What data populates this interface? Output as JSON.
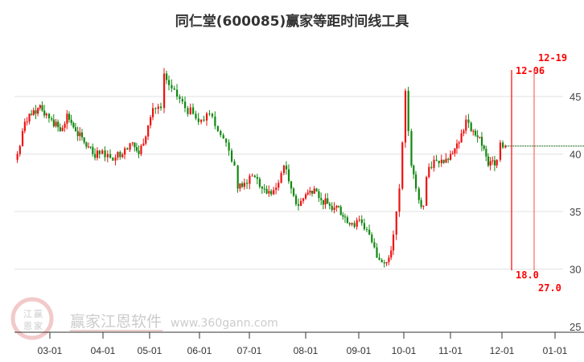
{
  "chart_data": {
    "type": "candlestick",
    "title": "同仁堂(600085)赢家等距时间线工具",
    "x_tick_labels": [
      "03-01",
      "04-01",
      "05-01",
      "06-01",
      "07-01",
      "08-01",
      "09-01",
      "10-01",
      "11-01",
      "12-01",
      "01-01"
    ],
    "y_tick_labels": [
      "45",
      "40",
      "35",
      "30",
      "25"
    ],
    "y_ticks": [
      45,
      40,
      35,
      30,
      25
    ],
    "ylim": [
      25,
      47.5
    ],
    "grid": true,
    "up_color": "#ee1111",
    "down_color": "#118811",
    "closes": [
      [
        "02-10",
        40
      ],
      [
        "02-13",
        42
      ],
      [
        "02-17",
        43.5
      ],
      [
        "02-22",
        44
      ],
      [
        "02-27",
        43.5
      ],
      [
        "03-02",
        43
      ],
      [
        "03-07",
        42
      ],
      [
        "03-11",
        43.5
      ],
      [
        "03-16",
        42
      ],
      [
        "03-21",
        41
      ],
      [
        "03-26",
        40
      ],
      [
        "03-30",
        40
      ],
      [
        "04-04",
        40
      ],
      [
        "04-09",
        39.7
      ],
      [
        "04-15",
        40.5
      ],
      [
        "04-20",
        41
      ],
      [
        "04-24",
        40
      ],
      [
        "04-30",
        42.5
      ],
      [
        "05-03",
        44
      ],
      [
        "05-08",
        44
      ],
      [
        "05-10",
        47
      ],
      [
        "05-13",
        46
      ],
      [
        "05-18",
        45
      ],
      [
        "05-23",
        44
      ],
      [
        "05-28",
        43.5
      ],
      [
        "06-02",
        43
      ],
      [
        "06-07",
        43.5
      ],
      [
        "06-12",
        42
      ],
      [
        "06-17",
        41
      ],
      [
        "06-22",
        39
      ],
      [
        "06-24",
        37
      ],
      [
        "06-28",
        37.5
      ],
      [
        "07-04",
        38
      ],
      [
        "07-08",
        37
      ],
      [
        "07-13",
        36.5
      ],
      [
        "07-17",
        37.5
      ],
      [
        "07-20",
        39
      ],
      [
        "07-24",
        37
      ],
      [
        "07-28",
        35.5
      ],
      [
        "08-01",
        36.5
      ],
      [
        "08-06",
        37
      ],
      [
        "08-10",
        36
      ],
      [
        "08-15",
        35.5
      ],
      [
        "08-19",
        35.5
      ],
      [
        "08-24",
        34.5
      ],
      [
        "08-28",
        34
      ],
      [
        "09-03",
        34
      ],
      [
        "09-08",
        33
      ],
      [
        "09-13",
        31
      ],
      [
        "09-18",
        30.5
      ],
      [
        "09-21",
        31
      ],
      [
        "09-24",
        33
      ],
      [
        "09-26",
        35
      ],
      [
        "09-28",
        37
      ],
      [
        "09-30",
        41
      ],
      [
        "10-02",
        45.5
      ],
      [
        "10-04",
        42
      ],
      [
        "10-06",
        39
      ],
      [
        "10-09",
        37
      ],
      [
        "10-11",
        36
      ],
      [
        "10-14",
        35.5
      ],
      [
        "10-16",
        38
      ],
      [
        "10-21",
        39.5
      ],
      [
        "10-26",
        39.5
      ],
      [
        "11-01",
        40
      ],
      [
        "11-06",
        41
      ],
      [
        "11-10",
        43
      ],
      [
        "11-13",
        42
      ],
      [
        "11-18",
        41.5
      ],
      [
        "11-23",
        39
      ],
      [
        "11-28",
        39.5
      ],
      [
        "11-30",
        41
      ],
      [
        "12-03",
        40.7
      ]
    ],
    "last_price": 40.7,
    "time_lines": [
      {
        "date_label": "12-06",
        "value_label": "18.0",
        "color": "#ff0000"
      },
      {
        "date_label": "12-19",
        "value_label": "27.0",
        "color": "#ff6666"
      }
    ]
  },
  "watermark": {
    "brand": "赢家江恩软件",
    "url": "www.360gann.com",
    "seal": [
      "江",
      "赢",
      "恩",
      "家"
    ]
  }
}
